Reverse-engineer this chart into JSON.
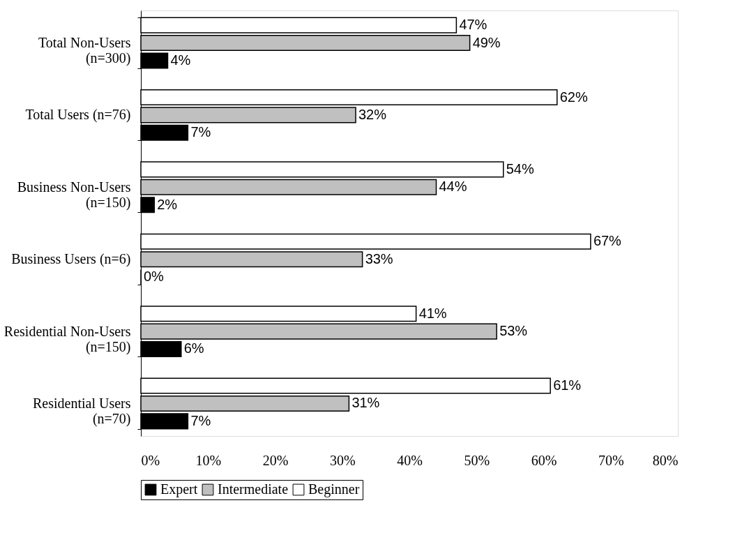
{
  "chart_data": {
    "type": "bar",
    "orientation": "horizontal",
    "categories": [
      "Total Non-Users\n(n=300)",
      "Total Users (n=76)",
      "Business Non-Users\n(n=150)",
      "Business Users (n=6)",
      "Residential Non-Users\n(n=150)",
      "Residential Users\n(n=70)"
    ],
    "series": [
      {
        "name": "Beginner",
        "color": "#ffffff",
        "values": [
          47,
          62,
          54,
          67,
          41,
          61
        ],
        "value_labels": [
          "47%",
          "62%",
          "54%",
          "67%",
          "41%",
          "61%"
        ]
      },
      {
        "name": "Intermediate",
        "color": "#c0c0c0",
        "values": [
          49,
          32,
          44,
          33,
          53,
          31
        ],
        "value_labels": [
          "49%",
          "32%",
          "44%",
          "33%",
          "53%",
          "31%"
        ]
      },
      {
        "name": "Expert",
        "color": "#000000",
        "values": [
          4,
          7,
          2,
          0,
          6,
          7
        ],
        "value_labels": [
          "4%",
          "7%",
          "2%",
          "0%",
          "6%",
          "7%"
        ]
      }
    ],
    "xlim": [
      0,
      80
    ],
    "xticks": [
      {
        "value": 0,
        "label": "0%"
      },
      {
        "value": 10,
        "label": "10%"
      },
      {
        "value": 20,
        "label": "20%"
      },
      {
        "value": 30,
        "label": "30%"
      },
      {
        "value": 40,
        "label": "40%"
      },
      {
        "value": 50,
        "label": "50%"
      },
      {
        "value": 60,
        "label": "60%"
      },
      {
        "value": 70,
        "label": "70%"
      },
      {
        "value": 80,
        "label": "80%"
      }
    ],
    "grid": false,
    "legend": "bottom"
  }
}
